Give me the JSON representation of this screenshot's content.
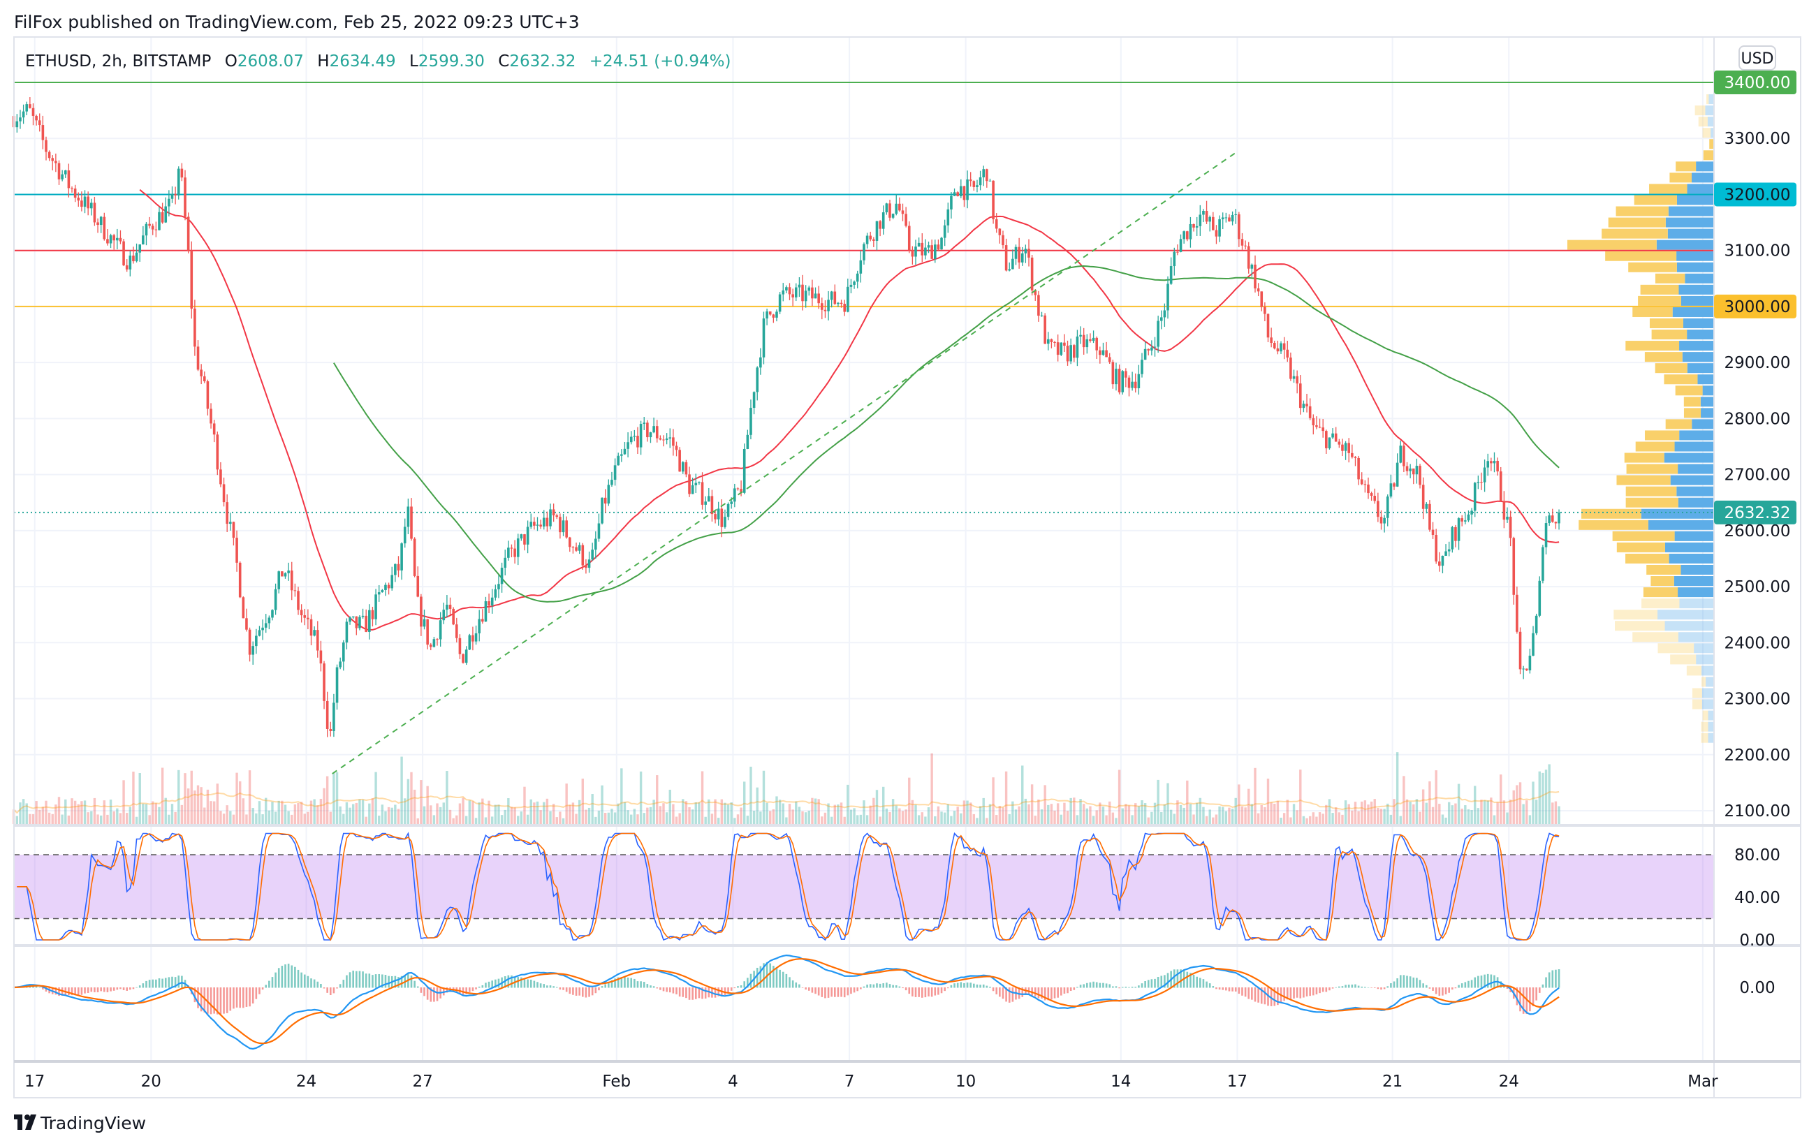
{
  "publisher_line": "FilFox published on TradingView.com, Feb 25, 2022 09:23 UTC+3",
  "legend": {
    "symbol": "ETHUSD, 2h, BITSTAMP",
    "o_label": "O",
    "o": "2608.07",
    "h_label": "H",
    "h": "2634.49",
    "l_label": "L",
    "l": "2599.30",
    "c_label": "C",
    "c": "2632.32",
    "change": "+24.51 (+0.94%)"
  },
  "currency": "USD",
  "price_axis": [
    {
      "label": "3300.00",
      "value": 3300
    },
    {
      "label": "3100.00",
      "value": 3100
    },
    {
      "label": "2900.00",
      "value": 2900
    },
    {
      "label": "2800.00",
      "value": 2800
    },
    {
      "label": "2700.00",
      "value": 2700
    },
    {
      "label": "2600.00",
      "value": 2600
    },
    {
      "label": "2500.00",
      "value": 2500
    },
    {
      "label": "2400.00",
      "value": 2400
    },
    {
      "label": "2300.00",
      "value": 2300
    },
    {
      "label": "2200.00",
      "value": 2200
    },
    {
      "label": "2100.00",
      "value": 2100
    }
  ],
  "price_tags": [
    {
      "label": "3400.00",
      "value": 3400,
      "color": "#4caf50",
      "text_color": "#ffffff"
    },
    {
      "label": "3200.00",
      "value": 3200,
      "color": "#00bcd4",
      "text_color": "#131722"
    },
    {
      "label": "3000.00",
      "value": 3000,
      "color": "#fbc02d",
      "text_color": "#131722"
    },
    {
      "label": "2632.32",
      "value": 2632.32,
      "color": "#26a69a",
      "text_color": "#ffffff"
    }
  ],
  "stoch_axis": [
    {
      "label": "80.00",
      "value": 80
    },
    {
      "label": "40.00",
      "value": 40
    },
    {
      "label": "0.00",
      "value": 0
    }
  ],
  "macd_axis": [
    {
      "label": "0.00",
      "value": 0
    }
  ],
  "time_axis": [
    {
      "label": "17",
      "day": 0
    },
    {
      "label": "20",
      "day": 3
    },
    {
      "label": "24",
      "day": 7
    },
    {
      "label": "27",
      "day": 10
    },
    {
      "label": "Feb",
      "day": 15
    },
    {
      "label": "4",
      "day": 18
    },
    {
      "label": "7",
      "day": 21
    },
    {
      "label": "10",
      "day": 24
    },
    {
      "label": "14",
      "day": 28
    },
    {
      "label": "17",
      "day": 31
    },
    {
      "label": "21",
      "day": 35
    },
    {
      "label": "24",
      "day": 38
    },
    {
      "label": "Mar",
      "day": 43
    }
  ],
  "brand": "TradingView",
  "chart_data": {
    "type": "candlestick",
    "title": "ETHUSD, 2h, BITSTAMP",
    "x_unit": "days since Jan 17 2022",
    "xlim": [
      -0.55,
      43.5
    ],
    "ylim": [
      2080,
      3440
    ],
    "interval_hours": 2,
    "price_path": [
      [
        -0.54,
        3340
      ],
      [
        -0.15,
        3350
      ],
      [
        0.3,
        3280
      ],
      [
        0.9,
        3215
      ],
      [
        1.49,
        3165
      ],
      [
        2.09,
        3110
      ],
      [
        2.45,
        3080
      ],
      [
        2.99,
        3145
      ],
      [
        3.58,
        3185
      ],
      [
        3.73,
        3260
      ],
      [
        3.94,
        3110
      ],
      [
        4.12,
        2925
      ],
      [
        4.33,
        2865
      ],
      [
        4.63,
        2760
      ],
      [
        4.93,
        2640
      ],
      [
        5.22,
        2535
      ],
      [
        5.52,
        2390
      ],
      [
        5.82,
        2430
      ],
      [
        6.12,
        2470
      ],
      [
        6.42,
        2535
      ],
      [
        6.87,
        2450
      ],
      [
        7.31,
        2390
      ],
      [
        7.61,
        2225
      ],
      [
        7.76,
        2330
      ],
      [
        8.06,
        2430
      ],
      [
        8.51,
        2430
      ],
      [
        8.96,
        2490
      ],
      [
        9.4,
        2535
      ],
      [
        9.61,
        2640
      ],
      [
        9.85,
        2470
      ],
      [
        10.21,
        2390
      ],
      [
        10.6,
        2470
      ],
      [
        10.99,
        2370
      ],
      [
        11.34,
        2430
      ],
      [
        11.79,
        2490
      ],
      [
        12.24,
        2555
      ],
      [
        12.84,
        2605
      ],
      [
        13.43,
        2625
      ],
      [
        13.88,
        2575
      ],
      [
        14.33,
        2535
      ],
      [
        14.63,
        2640
      ],
      [
        14.93,
        2700
      ],
      [
        15.37,
        2760
      ],
      [
        15.82,
        2780
      ],
      [
        16.42,
        2760
      ],
      [
        16.87,
        2680
      ],
      [
        17.31,
        2660
      ],
      [
        17.76,
        2615
      ],
      [
        18.21,
        2680
      ],
      [
        18.51,
        2845
      ],
      [
        18.81,
        2970
      ],
      [
        19.25,
        3020
      ],
      [
        19.85,
        3020
      ],
      [
        20.45,
        3010
      ],
      [
        20.9,
        3010
      ],
      [
        21.34,
        3105
      ],
      [
        21.79,
        3155
      ],
      [
        22.24,
        3185
      ],
      [
        22.54,
        3105
      ],
      [
        22.99,
        3095
      ],
      [
        23.43,
        3125
      ],
      [
        23.73,
        3215
      ],
      [
        24.18,
        3205
      ],
      [
        24.54,
        3245
      ],
      [
        24.78,
        3135
      ],
      [
        25.07,
        3070
      ],
      [
        25.52,
        3110
      ],
      [
        25.82,
        3010
      ],
      [
        26.12,
        2925
      ],
      [
        26.57,
        2915
      ],
      [
        27.01,
        2935
      ],
      [
        27.46,
        2925
      ],
      [
        27.91,
        2865
      ],
      [
        28.36,
        2870
      ],
      [
        28.81,
        2935
      ],
      [
        29.1,
        2990
      ],
      [
        29.4,
        3105
      ],
      [
        30.0,
        3165
      ],
      [
        30.45,
        3135
      ],
      [
        30.9,
        3165
      ],
      [
        31.19,
        3105
      ],
      [
        31.49,
        3040
      ],
      [
        31.79,
        2945
      ],
      [
        32.24,
        2905
      ],
      [
        32.69,
        2825
      ],
      [
        32.99,
        2780
      ],
      [
        33.43,
        2760
      ],
      [
        33.88,
        2740
      ],
      [
        34.33,
        2660
      ],
      [
        34.78,
        2615
      ],
      [
        35.22,
        2740
      ],
      [
        35.67,
        2700
      ],
      [
        35.97,
        2595
      ],
      [
        36.27,
        2535
      ],
      [
        36.57,
        2595
      ],
      [
        37.01,
        2640
      ],
      [
        37.46,
        2740
      ],
      [
        37.76,
        2680
      ],
      [
        38.06,
        2575
      ],
      [
        38.27,
        2330
      ],
      [
        38.51,
        2370
      ],
      [
        38.75,
        2450
      ],
      [
        38.9,
        2615
      ],
      [
        39.1,
        2625
      ],
      [
        39.34,
        2632.32
      ]
    ],
    "horizontal_levels": [
      {
        "value": 3400,
        "color": "#4caf50"
      },
      {
        "value": 3200,
        "color": "#00acc1"
      },
      {
        "value": 3100,
        "color": "#f23645"
      },
      {
        "value": 3000,
        "color": "#fbc02d"
      }
    ],
    "last_price": 2632.32,
    "trendline": {
      "from": [
        7.67,
        2166
      ],
      "to": [
        30.99,
        3276
      ],
      "style": "dashed",
      "color": "#4caf50"
    },
    "moving_averages": [
      {
        "name": "MA fast",
        "period": 40,
        "color": "#f23645"
      },
      {
        "name": "MA slow",
        "period": 100,
        "color": "#43a047"
      }
    ],
    "indicators": [
      {
        "name": "Stoch RSI",
        "k_color": "#2962ff",
        "d_color": "#ff6d00",
        "upper": 80,
        "lower": 20,
        "ylim": [
          0,
          100
        ]
      },
      {
        "name": "MACD",
        "fast": 12,
        "slow": 26,
        "signal": 9,
        "macd_color": "#2196f3",
        "signal_color": "#ff6d00"
      }
    ],
    "colors": {
      "up": "#26a69a",
      "down": "#ef5350",
      "profile_up": "#5dade8",
      "profile_down": "#f9d06a"
    }
  }
}
